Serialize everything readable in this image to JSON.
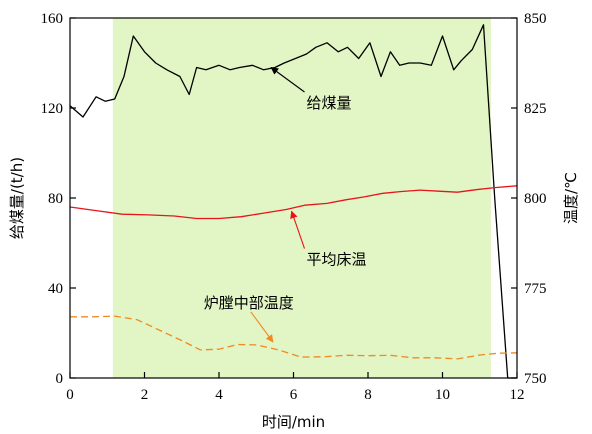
{
  "chart_data": {
    "type": "line",
    "xlabel": "时间/min",
    "ylabel_left": "给煤量/(t/h)",
    "ylabel_right": "温度/℃",
    "xlim": [
      0,
      12
    ],
    "ylim_left": [
      0,
      160
    ],
    "ylim_right": [
      750,
      850
    ],
    "x_ticks": [
      "0",
      "2",
      "4",
      "6",
      "8",
      "10",
      "12"
    ],
    "y_left_ticks": [
      "0",
      "40",
      "80",
      "120",
      "160"
    ],
    "y_right_ticks": [
      "750",
      "775",
      "800",
      "825",
      "850"
    ],
    "shaded_region": {
      "x_start": 1.15,
      "x_end": 11.3,
      "color": "#e2f5c4"
    },
    "grid": false,
    "series": [
      {
        "name": "给煤量",
        "axis": "left",
        "color": "#000000",
        "style": "solid",
        "x": [
          0,
          0.35,
          0.7,
          0.95,
          1.2,
          1.45,
          1.7,
          2.0,
          2.3,
          2.6,
          2.95,
          3.2,
          3.4,
          3.65,
          4.0,
          4.3,
          4.55,
          4.9,
          5.2,
          5.5,
          5.75,
          6.05,
          6.35,
          6.6,
          6.9,
          7.2,
          7.45,
          7.75,
          8.05,
          8.35,
          8.6,
          8.85,
          9.1,
          9.4,
          9.7,
          10.0,
          10.3,
          10.5,
          10.8,
          11.1,
          11.4,
          11.75,
          12.0
        ],
        "values": [
          121,
          116,
          125,
          123,
          124,
          134,
          152,
          145,
          140,
          137,
          134,
          126,
          138,
          137,
          139,
          137,
          138,
          139,
          137,
          138,
          140,
          142,
          144,
          147,
          149,
          145,
          147,
          142,
          149,
          134,
          145,
          139,
          140,
          140,
          139,
          152,
          137,
          141,
          146,
          157,
          80,
          0,
          0
        ]
      },
      {
        "name": "平均床温",
        "axis": "right",
        "color": "#e8141c",
        "style": "solid",
        "x": [
          0,
          0.7,
          1.4,
          2.1,
          2.8,
          3.4,
          4.0,
          4.6,
          5.2,
          5.8,
          6.3,
          6.9,
          7.4,
          7.9,
          8.4,
          8.9,
          9.4,
          9.9,
          10.4,
          10.9,
          11.4,
          12.0
        ],
        "values": [
          797.5,
          796.5,
          795.5,
          795.3,
          795,
          794.3,
          794.3,
          794.8,
          795.8,
          796.8,
          798,
          798.5,
          799.5,
          800.3,
          801.3,
          801.8,
          802.2,
          801.9,
          801.6,
          802.3,
          802.9,
          803.4
        ]
      },
      {
        "name": "炉膛中部温度",
        "axis": "right",
        "color": "#f08a24",
        "style": "dashed",
        "x": [
          0,
          0.6,
          1.2,
          1.8,
          2.4,
          3.0,
          3.5,
          4.0,
          4.5,
          5.0,
          5.6,
          6.2,
          6.8,
          7.4,
          8.0,
          8.6,
          9.2,
          9.8,
          10.4,
          11.0,
          11.5,
          12.0
        ],
        "values": [
          767,
          767,
          767.2,
          766.2,
          763.3,
          760.4,
          757.8,
          758,
          759.3,
          759.2,
          757.8,
          755.8,
          755.9,
          756.3,
          756.2,
          756.3,
          755.6,
          755.6,
          755.3,
          756.4,
          756.9,
          757
        ]
      }
    ],
    "annotations": [
      {
        "text": "给煤量",
        "series": "给煤量",
        "x": 6.35,
        "y_left": 120,
        "arrow_to_x": 5.4,
        "arrow_to_y_left": 138
      },
      {
        "text": "平均床温",
        "series": "平均床温",
        "x": 6.35,
        "y_right": 781.5,
        "arrow_to_x": 5.95,
        "arrow_to_y_right": 796.3
      },
      {
        "text": "炉膛中部温度",
        "series": "炉膛中部温度",
        "x": 4.8,
        "y_right": 769.5,
        "arrow_to_x": 5.45,
        "arrow_to_y_right": 760
      }
    ]
  }
}
